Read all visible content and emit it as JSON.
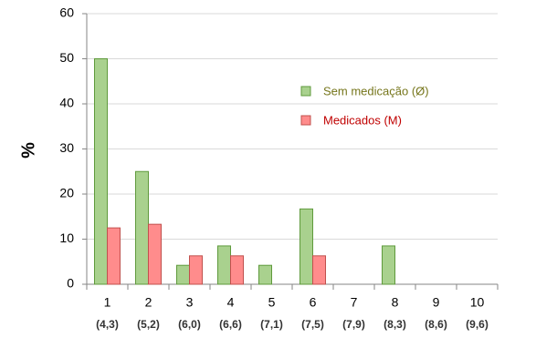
{
  "chart_data": {
    "type": "bar",
    "y_label": "%",
    "categories": [
      "1",
      "2",
      "3",
      "4",
      "5",
      "6",
      "7",
      "8",
      "9",
      "10"
    ],
    "category_sublabels": [
      "(4,3)",
      "(5,2)",
      "(6,0)",
      "(6,6)",
      "(7,1)",
      "(7,5)",
      "(7,9)",
      "(8,3)",
      "(8,6)",
      "(9,6)"
    ],
    "series": [
      {
        "name": "Sem medicação (Ø)",
        "color": "#a9d18e",
        "edge_color": "#5f9a3c",
        "text_color": "#76761c",
        "values": [
          50,
          25,
          4.2,
          8.5,
          4.2,
          16.7,
          0,
          8.5,
          0,
          0
        ]
      },
      {
        "name": "Medicados (M)",
        "color": "#ff8c8c",
        "edge_color": "#c0504d",
        "text_color": "#c00000",
        "values": [
          12.5,
          13.3,
          6.3,
          6.3,
          0,
          6.3,
          0,
          0,
          0,
          0
        ]
      }
    ],
    "ylim": [
      0,
      60
    ],
    "yticks": [
      0,
      10,
      20,
      30,
      40,
      50,
      60
    ],
    "grid": true,
    "legend_position": "right"
  }
}
